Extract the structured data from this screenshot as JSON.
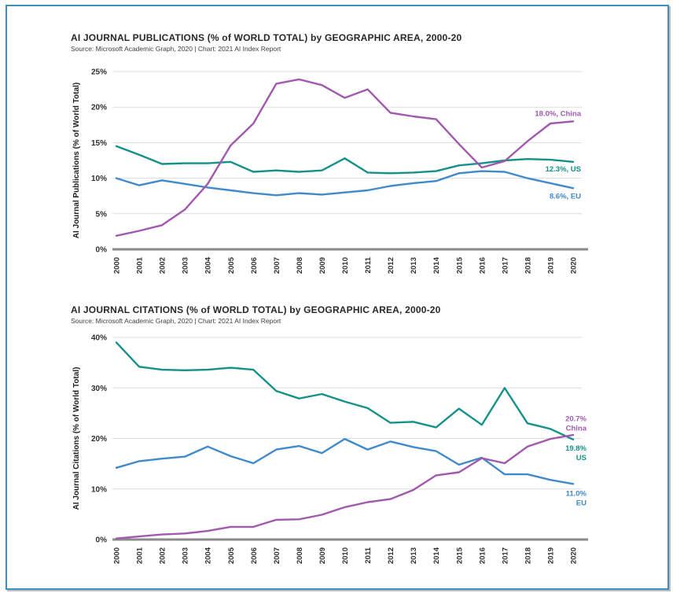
{
  "page": {
    "background": "#ffffff",
    "border_color": "#3e8ec4",
    "gridline_color": "#dcdcdc",
    "axis_color": "#8a8a8a"
  },
  "chart_data": [
    {
      "type": "line",
      "title": "AI JOURNAL PUBLICATIONS (% of WORLD TOTAL) by GEOGRAPHIC AREA, 2000-20",
      "source": "Source: Microsoft Academic Graph, 2020 | Chart: 2021 AI Index Report",
      "ylabel": "AI Journal Publications (% of World Total)",
      "x": [
        "2000",
        "2001",
        "2002",
        "2003",
        "2004",
        "2005",
        "2006",
        "2007",
        "2008",
        "2009",
        "2010",
        "2011",
        "2012",
        "2013",
        "2014",
        "2015",
        "2016",
        "2017",
        "2018",
        "2019",
        "2020"
      ],
      "ylim": [
        0,
        25
      ],
      "yticks": [
        0,
        5,
        10,
        15,
        20,
        25
      ],
      "ytick_labels": [
        "0%",
        "5%",
        "10%",
        "15%",
        "20%",
        "25%"
      ],
      "grid": true,
      "legend_position": "end-of-line-labels",
      "series": [
        {
          "name": "China",
          "color": "#a159ae",
          "end_label": [
            "18.0%, China"
          ],
          "values": [
            1.9,
            2.6,
            3.4,
            5.6,
            9.2,
            14.6,
            17.7,
            23.3,
            23.9,
            23.1,
            21.3,
            22.5,
            19.2,
            18.7,
            18.3,
            14.8,
            11.5,
            12.4,
            15.2,
            17.7,
            18.0
          ]
        },
        {
          "name": "US",
          "color": "#149189",
          "end_label": [
            "12.3%, US"
          ],
          "values": [
            14.5,
            13.3,
            12.0,
            12.1,
            12.1,
            12.3,
            10.9,
            11.1,
            10.9,
            11.1,
            12.8,
            10.8,
            10.7,
            10.8,
            11.0,
            11.8,
            12.1,
            12.5,
            12.7,
            12.6,
            12.3
          ]
        },
        {
          "name": "EU",
          "color": "#3f8acb",
          "end_label": [
            "8.6%, EU"
          ],
          "values": [
            10.0,
            9.0,
            9.7,
            9.2,
            8.7,
            8.3,
            7.9,
            7.6,
            7.9,
            7.7,
            8.0,
            8.3,
            8.9,
            9.3,
            9.6,
            10.7,
            11.0,
            10.9,
            10.0,
            9.3,
            8.6
          ]
        }
      ]
    },
    {
      "type": "line",
      "title": "AI JOURNAL CITATIONS (% of WORLD TOTAL) by GEOGRAPHIC AREA, 2000-20",
      "source": "Source: Microsoft Academic Graph, 2020 | Chart: 2021 AI Index Report",
      "ylabel": "AI Journal Citations (% of World Total)",
      "x": [
        "2000",
        "2001",
        "2002",
        "2003",
        "2004",
        "2005",
        "2006",
        "2007",
        "2008",
        "2009",
        "2010",
        "2011",
        "2012",
        "2013",
        "2014",
        "2015",
        "2016",
        "2017",
        "2018",
        "2019",
        "2020"
      ],
      "ylim": [
        0,
        40
      ],
      "yticks": [
        0,
        10,
        20,
        30,
        40
      ],
      "ytick_labels": [
        "0%",
        "10%",
        "20%",
        "30%",
        "40%"
      ],
      "grid": true,
      "legend_position": "end-of-line-labels",
      "series": [
        {
          "name": "China",
          "color": "#a159ae",
          "end_label": [
            "20.7%",
            "China"
          ],
          "values": [
            0.2,
            0.6,
            1.0,
            1.2,
            1.7,
            2.5,
            2.5,
            3.9,
            4.0,
            4.9,
            6.4,
            7.4,
            8.0,
            9.8,
            12.7,
            13.3,
            16.1,
            15.1,
            18.4,
            19.9,
            20.7
          ]
        },
        {
          "name": "US",
          "color": "#149189",
          "end_label": [
            "19.8%",
            "US"
          ],
          "values": [
            39.0,
            34.2,
            33.6,
            33.5,
            33.6,
            34.0,
            33.6,
            29.4,
            27.9,
            28.8,
            27.3,
            26.0,
            23.1,
            23.3,
            22.2,
            25.9,
            22.7,
            30.0,
            23.0,
            21.9,
            19.8
          ]
        },
        {
          "name": "EU",
          "color": "#3f8acb",
          "end_label": [
            "11.0%",
            "EU"
          ],
          "values": [
            14.2,
            15.5,
            16.0,
            16.4,
            18.4,
            16.5,
            15.1,
            17.8,
            18.5,
            17.1,
            19.9,
            17.8,
            19.4,
            18.3,
            17.5,
            14.8,
            16.2,
            12.9,
            12.9,
            11.8,
            11.0
          ]
        }
      ]
    }
  ]
}
